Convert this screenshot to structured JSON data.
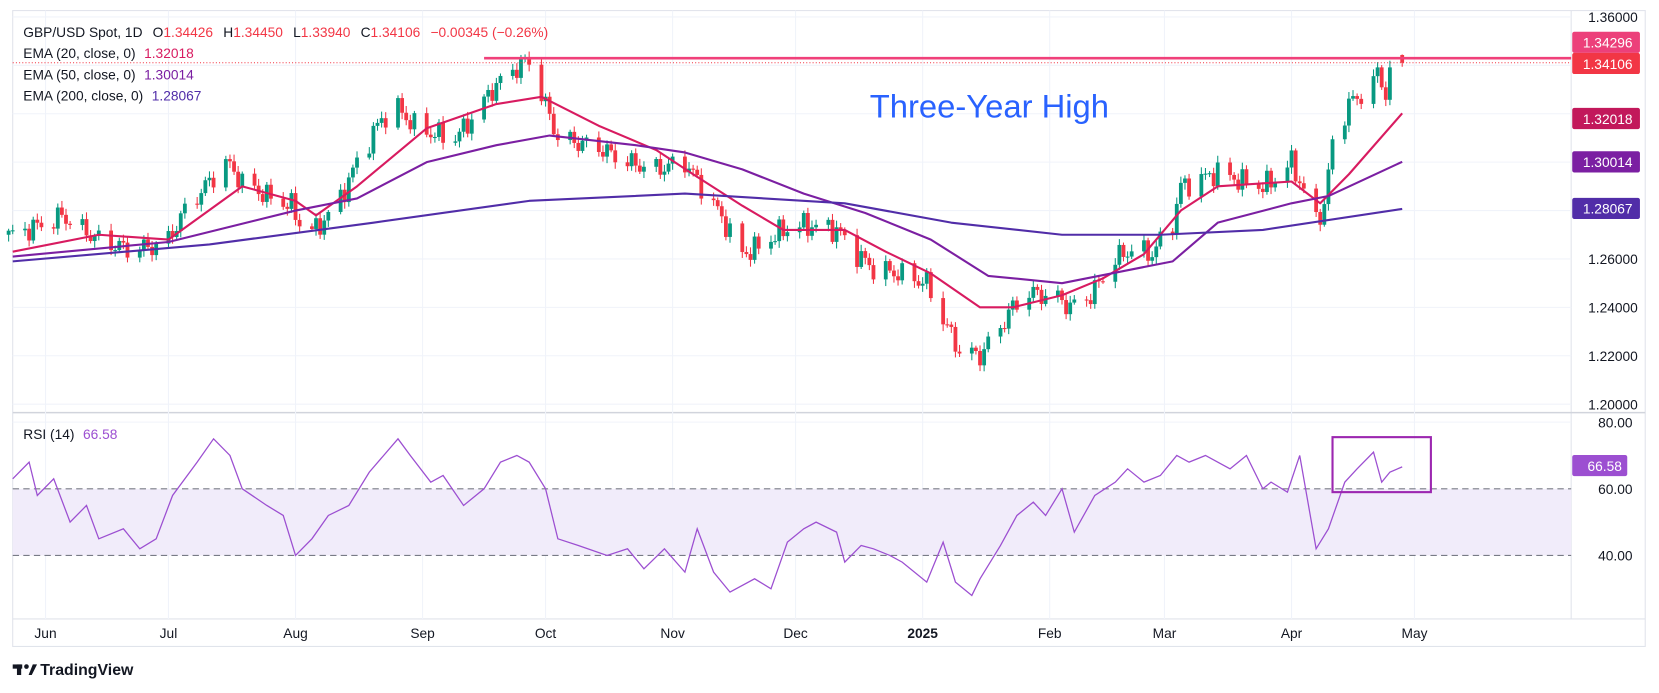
{
  "header": {
    "symbol": "GBP/USD Spot, 1D",
    "o_label": "O",
    "open": "1.34426",
    "h_label": "H",
    "high": "1.34450",
    "l_label": "L",
    "low": "1.33940",
    "c_label": "C",
    "close": "1.34106",
    "change": "−0.00345 (−0.26%)"
  },
  "indicators": {
    "ema20": {
      "label": "EMA (20, close, 0)",
      "value": "1.32018",
      "color": "#d81b60"
    },
    "ema50": {
      "label": "EMA (50, close, 0)",
      "value": "1.30014",
      "color": "#7b1fa2"
    },
    "ema200": {
      "label": "EMA (200, close, 0)",
      "value": "1.28067",
      "color": "#512da8"
    },
    "rsi": {
      "label": "RSI (14)",
      "value": "66.58",
      "color": "#9c4fd1"
    }
  },
  "price_axis": {
    "ticks": [
      "1.36000",
      "1.26000",
      "1.24000",
      "1.22000",
      "1.20000"
    ],
    "tags": [
      {
        "value": "1.34296",
        "color": "#ec407a"
      },
      {
        "value": "1.34106",
        "color": "#f23645"
      },
      {
        "value": "1.32018",
        "color": "#c2185b"
      },
      {
        "value": "1.30014",
        "color": "#7b1fa2"
      },
      {
        "value": "1.28067",
        "color": "#512da8"
      }
    ]
  },
  "rsi_axis": {
    "ticks": [
      "80.00",
      "60.00",
      "40.00"
    ],
    "tag": "66.58",
    "tag_color": "#9c4fd1"
  },
  "time_axis": {
    "labels": [
      {
        "text": "Jun",
        "date": "2024-06-01"
      },
      {
        "text": "Jul",
        "date": "2024-07-01"
      },
      {
        "text": "Aug",
        "date": "2024-08-01"
      },
      {
        "text": "Sep",
        "date": "2024-09-01"
      },
      {
        "text": "Oct",
        "date": "2024-10-01"
      },
      {
        "text": "Nov",
        "date": "2024-11-01"
      },
      {
        "text": "Dec",
        "date": "2024-12-01"
      },
      {
        "text": "2025",
        "date": "2025-01-01",
        "bold": true
      },
      {
        "text": "Feb",
        "date": "2025-02-01"
      },
      {
        "text": "Mar",
        "date": "2025-03-01"
      },
      {
        "text": "Apr",
        "date": "2025-04-01"
      },
      {
        "text": "May",
        "date": "2025-05-01"
      }
    ]
  },
  "annotation": {
    "text": "Three-Year High",
    "color": "#2962ff",
    "resistance_level": 1.34296,
    "resistance_from": "2024-09-16",
    "line_color": "#f0407a"
  },
  "rsi_box": {
    "from": "2025-04-11",
    "to": "2025-05-05",
    "low": 59,
    "high": 75.5,
    "color": "#9c27b0"
  },
  "branding": {
    "logo_text": "TradingView"
  },
  "colors": {
    "up": "#089981",
    "down": "#f23645",
    "rsi_band": "#f1ecfa"
  },
  "chart_data": {
    "type": "candlestick",
    "title": "GBP/USD Spot, 1D",
    "ylim": [
      1.2,
      1.36
    ],
    "rsi_ylim": [
      20,
      85
    ],
    "rsi_levels": [
      60,
      40
    ],
    "last_bar": {
      "date": "2025-04-28",
      "open": 1.34426,
      "high": 1.3445,
      "low": 1.3394,
      "close": 1.34106
    },
    "close": [
      [
        "2024-05-24",
        1.27
      ],
      [
        "2024-06-03",
        1.276
      ],
      [
        "2024-06-05",
        1.278
      ],
      [
        "2024-06-10",
        1.272
      ],
      [
        "2024-06-14",
        1.268
      ],
      [
        "2024-06-21",
        1.264
      ],
      [
        "2024-06-27",
        1.265
      ],
      [
        "2024-07-01",
        1.268
      ],
      [
        "2024-07-05",
        1.28
      ],
      [
        "2024-07-10",
        1.29
      ],
      [
        "2024-07-15",
        1.3
      ],
      [
        "2024-07-19",
        1.292
      ],
      [
        "2024-07-25",
        1.286
      ],
      [
        "2024-07-31",
        1.282
      ],
      [
        "2024-08-02",
        1.275
      ],
      [
        "2024-08-06",
        1.272
      ],
      [
        "2024-08-12",
        1.285
      ],
      [
        "2024-08-16",
        1.3
      ],
      [
        "2024-08-22",
        1.318
      ],
      [
        "2024-08-26",
        1.322
      ],
      [
        "2024-08-30",
        1.315
      ],
      [
        "2024-09-03",
        1.312
      ],
      [
        "2024-09-09",
        1.31
      ],
      [
        "2024-09-13",
        1.318
      ],
      [
        "2024-09-18",
        1.33
      ],
      [
        "2024-09-23",
        1.338
      ],
      [
        "2024-09-27",
        1.342
      ],
      [
        "2024-09-30",
        1.328
      ],
      [
        "2024-10-04",
        1.31
      ],
      [
        "2024-10-14",
        1.306
      ],
      [
        "2024-10-21",
        1.3
      ],
      [
        "2024-10-28",
        1.297
      ],
      [
        "2024-11-04",
        1.3
      ],
      [
        "2024-11-12",
        1.28
      ],
      [
        "2024-11-18",
        1.262
      ],
      [
        "2024-11-22",
        1.265
      ],
      [
        "2024-11-28",
        1.272
      ],
      [
        "2024-12-03",
        1.274
      ],
      [
        "2024-12-11",
        1.272
      ],
      [
        "2024-12-16",
        1.262
      ],
      [
        "2024-12-20",
        1.256
      ],
      [
        "2024-12-26",
        1.254
      ],
      [
        "2025-01-02",
        1.25
      ],
      [
        "2025-01-06",
        1.235
      ],
      [
        "2025-01-10",
        1.222
      ],
      [
        "2025-01-15",
        1.22
      ],
      [
        "2025-01-20",
        1.232
      ],
      [
        "2025-01-23",
        1.24
      ],
      [
        "2025-01-27",
        1.246
      ],
      [
        "2025-02-03",
        1.244
      ],
      [
        "2025-02-06",
        1.24
      ],
      [
        "2025-02-11",
        1.245
      ],
      [
        "2025-02-17",
        1.26
      ],
      [
        "2025-02-21",
        1.264
      ],
      [
        "2025-02-26",
        1.262
      ],
      [
        "2025-03-03",
        1.275
      ],
      [
        "2025-03-05",
        1.29
      ],
      [
        "2025-03-10",
        1.293
      ],
      [
        "2025-03-14",
        1.296
      ],
      [
        "2025-03-20",
        1.292
      ],
      [
        "2025-03-25",
        1.29
      ],
      [
        "2025-03-28",
        1.293
      ],
      [
        "2025-04-01",
        1.3
      ],
      [
        "2025-04-03",
        1.292
      ],
      [
        "2025-04-07",
        1.276
      ],
      [
        "2025-04-09",
        1.282
      ],
      [
        "2025-04-11",
        1.308
      ],
      [
        "2025-04-15",
        1.324
      ],
      [
        "2025-04-21",
        1.332
      ],
      [
        "2025-04-22",
        1.338
      ],
      [
        "2025-04-24",
        1.328
      ],
      [
        "2025-04-25",
        1.335
      ],
      [
        "2025-04-28",
        1.341
      ]
    ],
    "series": [
      {
        "name": "EMA (20, close, 0)",
        "color": "#d81b60",
        "values": [
          [
            "2024-05-24",
            1.263
          ],
          [
            "2024-06-14",
            1.27
          ],
          [
            "2024-07-01",
            1.268
          ],
          [
            "2024-07-19",
            1.29
          ],
          [
            "2024-08-01",
            1.284
          ],
          [
            "2024-08-06",
            1.278
          ],
          [
            "2024-08-16",
            1.29
          ],
          [
            "2024-09-02",
            1.314
          ],
          [
            "2024-09-19",
            1.324
          ],
          [
            "2024-09-30",
            1.327
          ],
          [
            "2024-10-14",
            1.315
          ],
          [
            "2024-10-28",
            1.305
          ],
          [
            "2024-11-06",
            1.295
          ],
          [
            "2024-11-18",
            1.282
          ],
          [
            "2024-11-28",
            1.272
          ],
          [
            "2024-12-13",
            1.272
          ],
          [
            "2024-12-23",
            1.263
          ],
          [
            "2025-01-03",
            1.254
          ],
          [
            "2025-01-15",
            1.24
          ],
          [
            "2025-01-23",
            1.24
          ],
          [
            "2025-02-04",
            1.245
          ],
          [
            "2025-02-14",
            1.252
          ],
          [
            "2025-02-24",
            1.262
          ],
          [
            "2025-03-05",
            1.28
          ],
          [
            "2025-03-14",
            1.29
          ],
          [
            "2025-04-01",
            1.292
          ],
          [
            "2025-04-08",
            1.283
          ],
          [
            "2025-04-15",
            1.295
          ],
          [
            "2025-04-28",
            1.32018
          ]
        ]
      },
      {
        "name": "EMA (50, close, 0)",
        "color": "#7b1fa2",
        "values": [
          [
            "2024-05-24",
            1.261
          ],
          [
            "2024-07-01",
            1.267
          ],
          [
            "2024-08-01",
            1.28
          ],
          [
            "2024-08-16",
            1.285
          ],
          [
            "2024-09-02",
            1.3
          ],
          [
            "2024-09-19",
            1.307
          ],
          [
            "2024-10-02",
            1.311
          ],
          [
            "2024-10-23",
            1.307
          ],
          [
            "2024-11-04",
            1.304
          ],
          [
            "2024-11-18",
            1.297
          ],
          [
            "2024-12-03",
            1.287
          ],
          [
            "2024-12-18",
            1.279
          ],
          [
            "2025-01-03",
            1.268
          ],
          [
            "2025-01-17",
            1.253
          ],
          [
            "2025-02-04",
            1.25
          ],
          [
            "2025-02-19",
            1.255
          ],
          [
            "2025-03-03",
            1.259
          ],
          [
            "2025-03-14",
            1.275
          ],
          [
            "2025-04-01",
            1.283
          ],
          [
            "2025-04-10",
            1.286
          ],
          [
            "2025-04-28",
            1.30014
          ]
        ]
      },
      {
        "name": "EMA (200, close, 0)",
        "color": "#512da8",
        "values": [
          [
            "2024-05-24",
            1.259
          ],
          [
            "2024-07-11",
            1.266
          ],
          [
            "2024-08-20",
            1.275
          ],
          [
            "2024-09-27",
            1.284
          ],
          [
            "2024-11-04",
            1.287
          ],
          [
            "2024-12-13",
            1.283
          ],
          [
            "2025-01-08",
            1.275
          ],
          [
            "2025-02-04",
            1.27
          ],
          [
            "2025-02-28",
            1.27
          ],
          [
            "2025-03-25",
            1.272
          ],
          [
            "2025-04-28",
            1.28067
          ]
        ]
      },
      {
        "name": "RSI (14)",
        "color": "#9c4fd1",
        "pane": "rsi",
        "values": [
          [
            "2024-05-24",
            63
          ],
          [
            "2024-05-28",
            68
          ],
          [
            "2024-05-30",
            58
          ],
          [
            "2024-06-03",
            63
          ],
          [
            "2024-06-07",
            50
          ],
          [
            "2024-06-11",
            55
          ],
          [
            "2024-06-14",
            45
          ],
          [
            "2024-06-20",
            48
          ],
          [
            "2024-06-24",
            42
          ],
          [
            "2024-06-28",
            45
          ],
          [
            "2024-07-02",
            58
          ],
          [
            "2024-07-08",
            68
          ],
          [
            "2024-07-12",
            75
          ],
          [
            "2024-07-16",
            70
          ],
          [
            "2024-07-19",
            60
          ],
          [
            "2024-07-25",
            55
          ],
          [
            "2024-07-29",
            52
          ],
          [
            "2024-08-01",
            40
          ],
          [
            "2024-08-05",
            45
          ],
          [
            "2024-08-09",
            52
          ],
          [
            "2024-08-14",
            55
          ],
          [
            "2024-08-19",
            65
          ],
          [
            "2024-08-26",
            75
          ],
          [
            "2024-08-29",
            70
          ],
          [
            "2024-09-03",
            62
          ],
          [
            "2024-09-06",
            64
          ],
          [
            "2024-09-11",
            55
          ],
          [
            "2024-09-16",
            60
          ],
          [
            "2024-09-20",
            68
          ],
          [
            "2024-09-24",
            70
          ],
          [
            "2024-09-27",
            68
          ],
          [
            "2024-10-01",
            60
          ],
          [
            "2024-10-04",
            45
          ],
          [
            "2024-10-09",
            43
          ],
          [
            "2024-10-16",
            40
          ],
          [
            "2024-10-21",
            42
          ],
          [
            "2024-10-25",
            36
          ],
          [
            "2024-10-30",
            42
          ],
          [
            "2024-11-04",
            35
          ],
          [
            "2024-11-07",
            48
          ],
          [
            "2024-11-11",
            35
          ],
          [
            "2024-11-15",
            29
          ],
          [
            "2024-11-21",
            33
          ],
          [
            "2024-11-25",
            30
          ],
          [
            "2024-11-29",
            44
          ],
          [
            "2024-12-03",
            48
          ],
          [
            "2024-12-06",
            50
          ],
          [
            "2024-12-11",
            47
          ],
          [
            "2024-12-13",
            38
          ],
          [
            "2024-12-17",
            43
          ],
          [
            "2024-12-20",
            42
          ],
          [
            "2024-12-24",
            40
          ],
          [
            "2024-12-27",
            38
          ],
          [
            "2025-01-02",
            32
          ],
          [
            "2025-01-06",
            44
          ],
          [
            "2025-01-09",
            32
          ],
          [
            "2025-01-13",
            28
          ],
          [
            "2025-01-15",
            33
          ],
          [
            "2025-01-20",
            43
          ],
          [
            "2025-01-24",
            52
          ],
          [
            "2025-01-28",
            56
          ],
          [
            "2025-01-31",
            52
          ],
          [
            "2025-02-04",
            60
          ],
          [
            "2025-02-07",
            47
          ],
          [
            "2025-02-12",
            58
          ],
          [
            "2025-02-17",
            62
          ],
          [
            "2025-02-20",
            66
          ],
          [
            "2025-02-24",
            62
          ],
          [
            "2025-02-28",
            64
          ],
          [
            "2025-03-04",
            70
          ],
          [
            "2025-03-07",
            68
          ],
          [
            "2025-03-11",
            70
          ],
          [
            "2025-03-17",
            66
          ],
          [
            "2025-03-21",
            70
          ],
          [
            "2025-03-25",
            60
          ],
          [
            "2025-03-27",
            62
          ],
          [
            "2025-03-31",
            59
          ],
          [
            "2025-04-03",
            70
          ],
          [
            "2025-04-07",
            42
          ],
          [
            "2025-04-10",
            48
          ],
          [
            "2025-04-14",
            62
          ],
          [
            "2025-04-17",
            66
          ],
          [
            "2025-04-21",
            71
          ],
          [
            "2025-04-23",
            62
          ],
          [
            "2025-04-25",
            65
          ],
          [
            "2025-04-28",
            66.58
          ]
        ]
      }
    ]
  }
}
